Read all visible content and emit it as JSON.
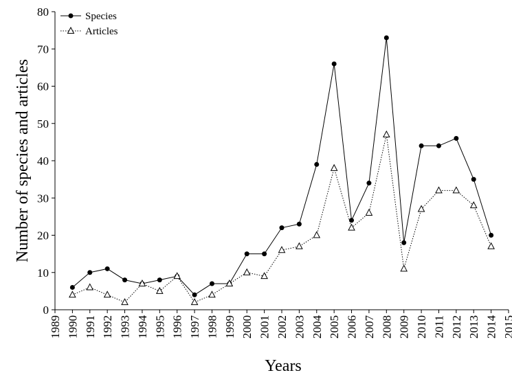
{
  "chart_data": {
    "type": "line",
    "xlabel": "Years",
    "ylabel": "Number of species and articles",
    "x": [
      1990,
      1991,
      1992,
      1993,
      1994,
      1995,
      1996,
      1997,
      1998,
      1999,
      2000,
      2001,
      2002,
      2003,
      2004,
      2005,
      2006,
      2007,
      2008,
      2009,
      2010,
      2011,
      2012,
      2013,
      2014
    ],
    "series": [
      {
        "name": "Species",
        "color": "#000000",
        "marker": "circle",
        "line_style": "solid",
        "values": [
          6,
          10,
          11,
          8,
          7,
          8,
          9,
          4,
          7,
          7,
          15,
          15,
          22,
          23,
          39,
          66,
          24,
          34,
          73,
          18,
          44,
          44,
          46,
          35,
          20
        ]
      },
      {
        "name": "Articles",
        "color": "#000000",
        "marker": "triangle",
        "line_style": "dotted",
        "values": [
          4,
          6,
          4,
          2,
          7,
          5,
          9,
          2,
          4,
          7,
          10,
          9,
          16,
          17,
          20,
          38,
          22,
          26,
          47,
          11,
          27,
          32,
          32,
          28,
          17
        ]
      }
    ],
    "xlim": [
      1989,
      2015
    ],
    "xticks": [
      1989,
      1990,
      1991,
      1992,
      1993,
      1994,
      1995,
      1996,
      1997,
      1998,
      1999,
      2000,
      2001,
      2002,
      2003,
      2004,
      2005,
      2006,
      2007,
      2008,
      2009,
      2010,
      2011,
      2012,
      2013,
      2014,
      2015
    ],
    "ylim": [
      0,
      80
    ],
    "yticks": [
      0,
      10,
      20,
      30,
      40,
      50,
      60,
      70,
      80
    ],
    "grid": false,
    "legend": "upper left"
  }
}
